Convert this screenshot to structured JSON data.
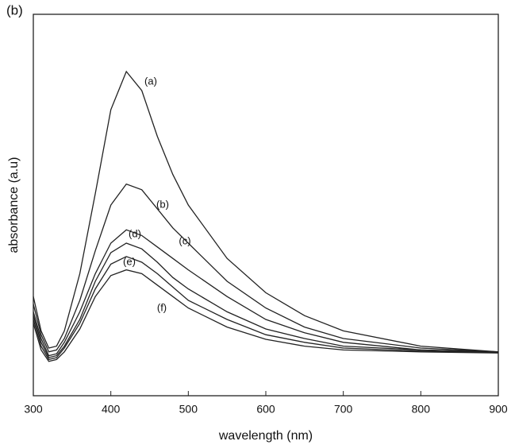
{
  "chart_data": {
    "type": "line",
    "panel_label": "(b)",
    "x_label": "wavelength (nm)",
    "y_label": "absorbance (a.u)",
    "x": [
      300,
      310,
      320,
      330,
      340,
      360,
      380,
      400,
      420,
      440,
      460,
      480,
      500,
      550,
      600,
      650,
      700,
      800,
      900
    ],
    "series": [
      {
        "name": "(a)",
        "color": "#222222",
        "values": [
          0.26,
          0.17,
          0.125,
          0.13,
          0.17,
          0.32,
          0.53,
          0.75,
          0.85,
          0.8,
          0.68,
          0.58,
          0.5,
          0.36,
          0.27,
          0.21,
          0.17,
          0.13,
          0.115
        ]
      },
      {
        "name": "(b)",
        "color": "#222222",
        "values": [
          0.24,
          0.16,
          0.115,
          0.12,
          0.15,
          0.25,
          0.38,
          0.5,
          0.555,
          0.54,
          0.49,
          0.44,
          0.4,
          0.3,
          0.23,
          0.18,
          0.15,
          0.125,
          0.115
        ]
      },
      {
        "name": "(c)",
        "color": "#222222",
        "values": [
          0.22,
          0.15,
          0.105,
          0.11,
          0.14,
          0.22,
          0.32,
          0.4,
          0.435,
          0.42,
          0.39,
          0.36,
          0.33,
          0.26,
          0.2,
          0.165,
          0.14,
          0.12,
          0.115
        ]
      },
      {
        "name": "(d)",
        "color": "#222222",
        "values": [
          0.21,
          0.14,
          0.1,
          0.105,
          0.13,
          0.2,
          0.3,
          0.375,
          0.4,
          0.385,
          0.35,
          0.31,
          0.28,
          0.22,
          0.175,
          0.15,
          0.13,
          0.12,
          0.114
        ]
      },
      {
        "name": "(e)",
        "color": "#222222",
        "values": [
          0.2,
          0.13,
          0.095,
          0.1,
          0.125,
          0.19,
          0.28,
          0.345,
          0.365,
          0.35,
          0.32,
          0.285,
          0.25,
          0.2,
          0.16,
          0.14,
          0.125,
          0.117,
          0.113
        ]
      },
      {
        "name": "(f)",
        "color": "#222222",
        "values": [
          0.19,
          0.12,
          0.09,
          0.095,
          0.115,
          0.175,
          0.26,
          0.315,
          0.33,
          0.32,
          0.29,
          0.26,
          0.23,
          0.18,
          0.148,
          0.13,
          0.12,
          0.115,
          0.112
        ]
      }
    ],
    "xlim": [
      300,
      900
    ],
    "xticks": [
      300,
      400,
      500,
      600,
      700,
      800,
      900
    ],
    "ylim": [
      0,
      1
    ]
  }
}
